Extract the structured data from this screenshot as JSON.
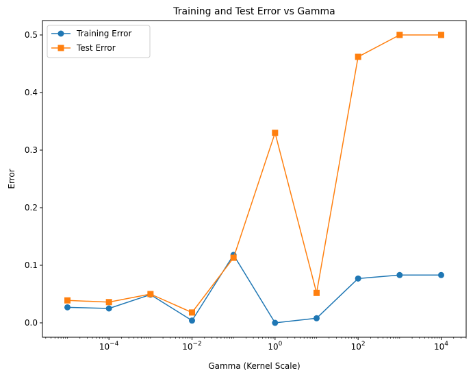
{
  "chart_data": {
    "type": "line",
    "title": "Training and Test Error vs Gamma",
    "xlabel": "Gamma (Kernel Scale)",
    "ylabel": "Error",
    "xscale": "log",
    "xlim": [
      2.5e-06,
      40000
    ],
    "ylim": [
      -0.025,
      0.525
    ],
    "x": [
      1e-05,
      0.0001,
      0.001,
      0.01,
      0.1,
      1,
      10,
      100,
      1000,
      10000
    ],
    "xticks": [
      {
        "value": 0.0001,
        "base": "10",
        "exp": "−4"
      },
      {
        "value": 0.01,
        "base": "10",
        "exp": "−2"
      },
      {
        "value": 1,
        "base": "10",
        "exp": "0"
      },
      {
        "value": 100,
        "base": "10",
        "exp": "2"
      },
      {
        "value": 10000,
        "base": "10",
        "exp": "4"
      }
    ],
    "yticks": [
      {
        "value": 0.0,
        "label": "0.0"
      },
      {
        "value": 0.1,
        "label": "0.1"
      },
      {
        "value": 0.2,
        "label": "0.2"
      },
      {
        "value": 0.3,
        "label": "0.3"
      },
      {
        "value": 0.4,
        "label": "0.4"
      },
      {
        "value": 0.5,
        "label": "0.5"
      }
    ],
    "series": [
      {
        "name": "Training Error",
        "color": "#1f77b4",
        "marker": "circle",
        "values": [
          0.027,
          0.025,
          0.049,
          0.004,
          0.118,
          0.0,
          0.008,
          0.077,
          0.083,
          0.083
        ]
      },
      {
        "name": "Test Error",
        "color": "#ff7f0e",
        "marker": "square",
        "values": [
          0.039,
          0.036,
          0.05,
          0.018,
          0.113,
          0.33,
          0.052,
          0.462,
          0.5,
          0.5
        ]
      }
    ],
    "grid": false,
    "legend": "top-left"
  }
}
